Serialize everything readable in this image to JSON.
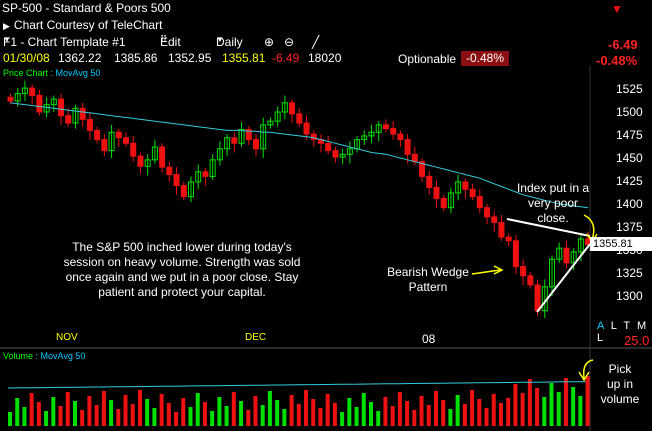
{
  "header": {
    "symbol": "SP-500",
    "name": "Standard & Poors 500",
    "courtesy": "Chart Courtesy of TeleChart"
  },
  "toolbar": {
    "template": "F1 - Chart Template #1",
    "edit": "Edit",
    "period": "Daily"
  },
  "quote": {
    "date": "01/30/08",
    "open": "1362.22",
    "high": "1385.86",
    "low": "1352.95",
    "close": "1355.81",
    "change": "-6.49",
    "volume": "18020",
    "optionable": "Optionable",
    "pct_change": "-0.48%",
    "change_right": "-6.49",
    "pct_right": "-0.48%"
  },
  "panels": {
    "price_label_a": "Price Chart",
    "price_label_b": "MovAvg 50",
    "volume_label_a": "Volume",
    "volume_label_b": "MovAvg 50"
  },
  "price_tag": "1355.81",
  "right_controls": {
    "a": "A",
    "ltml": "L T M L",
    "zoom": "25.0"
  },
  "annotations": {
    "commentary": [
      "The S&P 500 inched lower during today's",
      "session on heavy volume. Strength was sold",
      "once again and we put in a poor close. Stay",
      "patient and protect your capital."
    ],
    "wedge": [
      "Bearish Wedge",
      "Pattern"
    ],
    "close_note": [
      "Index put in a",
      "very poor",
      "close."
    ],
    "volume_note": [
      "Pick",
      "up in",
      "volume"
    ]
  },
  "colors": {
    "up": "#00e000",
    "down": "#ee1111",
    "ma": "#33ccdd",
    "background": "#000000"
  },
  "chart_data": {
    "type": "candlestick",
    "y_axis_ticks": [
      1525,
      1500,
      1475,
      1450,
      1425,
      1400,
      1375,
      1350,
      1325,
      1300
    ],
    "x_axis_labels": [
      "NOV",
      "DEC",
      "08"
    ],
    "ylim": [
      1270,
      1540
    ],
    "candles_close": [
      1512,
      1520,
      1526,
      1518,
      1500,
      1508,
      1514,
      1496,
      1488,
      1504,
      1492,
      1480,
      1470,
      1458,
      1478,
      1472,
      1466,
      1452,
      1441,
      1448,
      1462,
      1440,
      1432,
      1420,
      1408,
      1424,
      1435,
      1430,
      1448,
      1460,
      1472,
      1466,
      1481,
      1470,
      1460,
      1486,
      1490,
      1500,
      1510,
      1498,
      1488,
      1476,
      1470,
      1466,
      1458,
      1451,
      1454,
      1460,
      1470,
      1474,
      1478,
      1486,
      1482,
      1476,
      1470,
      1454,
      1446,
      1430,
      1418,
      1406,
      1396,
      1412,
      1424,
      1416,
      1408,
      1396,
      1386,
      1380,
      1364,
      1360,
      1332,
      1322,
      1312,
      1284,
      1310,
      1340,
      1352,
      1336,
      1348,
      1362,
      1355.81
    ],
    "ma50": [
      1510,
      1509,
      1508,
      1507,
      1506,
      1505,
      1504,
      1503,
      1502,
      1501,
      1500,
      1499,
      1498,
      1497,
      1496,
      1495,
      1494,
      1493,
      1492,
      1491,
      1490,
      1489,
      1488,
      1487,
      1486,
      1485,
      1484,
      1483,
      1482,
      1481,
      1480,
      1480,
      1480,
      1479,
      1479,
      1478,
      1478,
      1477,
      1476,
      1475,
      1474,
      1473,
      1472,
      1470,
      1468,
      1466,
      1464,
      1462,
      1460,
      1458,
      1456,
      1455,
      1454,
      1452,
      1450,
      1448,
      1446,
      1444,
      1442,
      1440,
      1438,
      1436,
      1434,
      1432,
      1430,
      1428,
      1425,
      1422,
      1419,
      1416,
      1413,
      1410,
      1408,
      1406,
      1404,
      1402,
      1400,
      1399,
      1398,
      1397,
      1396
    ],
    "volume_note": "heavy volume on last bar"
  }
}
